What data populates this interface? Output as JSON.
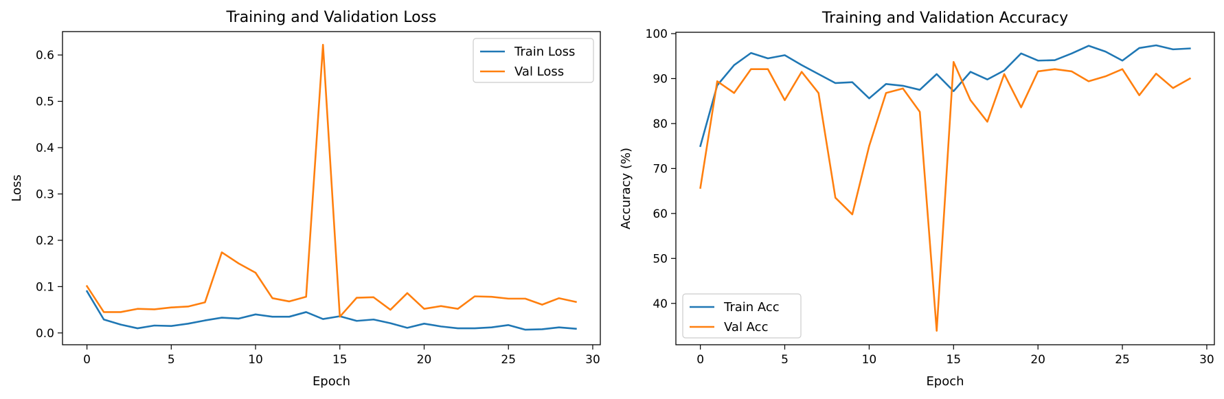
{
  "chart_data": [
    {
      "type": "line",
      "title": "Training and Validation Loss",
      "xlabel": "Epoch",
      "ylabel": "Loss",
      "xlim": [
        -1.45,
        30.45
      ],
      "ylim": [
        -0.0255,
        0.6505
      ],
      "xticks": [
        0,
        5,
        10,
        15,
        20,
        25,
        30
      ],
      "yticks": [
        0.0,
        0.1,
        0.2,
        0.3,
        0.4,
        0.5,
        0.6
      ],
      "ytick_labels": [
        "0.0",
        "0.1",
        "0.2",
        "0.3",
        "0.4",
        "0.5",
        "0.6"
      ],
      "grid": false,
      "legend_position": "upper right",
      "x": [
        0,
        1,
        2,
        3,
        4,
        5,
        6,
        7,
        8,
        9,
        10,
        11,
        12,
        13,
        14,
        15,
        16,
        17,
        18,
        19,
        20,
        21,
        22,
        23,
        24,
        25,
        26,
        27,
        28,
        29
      ],
      "series": [
        {
          "name": "Train Loss",
          "color": "#1f77b4",
          "values": [
            0.09,
            0.029,
            0.018,
            0.01,
            0.016,
            0.015,
            0.02,
            0.027,
            0.033,
            0.031,
            0.04,
            0.035,
            0.035,
            0.045,
            0.03,
            0.036,
            0.026,
            0.029,
            0.021,
            0.011,
            0.02,
            0.014,
            0.01,
            0.01,
            0.012,
            0.017,
            0.007,
            0.008,
            0.012,
            0.009
          ]
        },
        {
          "name": "Val Loss",
          "color": "#ff7f0e",
          "values": [
            0.101,
            0.045,
            0.045,
            0.052,
            0.051,
            0.055,
            0.057,
            0.066,
            0.174,
            0.15,
            0.13,
            0.075,
            0.068,
            0.078,
            0.622,
            0.035,
            0.076,
            0.077,
            0.05,
            0.086,
            0.052,
            0.058,
            0.052,
            0.079,
            0.078,
            0.074,
            0.074,
            0.061,
            0.075,
            0.067
          ]
        }
      ]
    },
    {
      "type": "line",
      "title": "Training and Validation Accuracy",
      "xlabel": "Epoch",
      "ylabel": "Accuracy (%)",
      "xlim": [
        -1.45,
        30.45
      ],
      "ylim": [
        30.8,
        100.3
      ],
      "xticks": [
        0,
        5,
        10,
        15,
        20,
        25,
        30
      ],
      "yticks": [
        40,
        50,
        60,
        70,
        80,
        90,
        100
      ],
      "ytick_labels": [
        "40",
        "50",
        "60",
        "70",
        "80",
        "90",
        "100"
      ],
      "grid": false,
      "legend_position": "lower left",
      "x": [
        0,
        1,
        2,
        3,
        4,
        5,
        6,
        7,
        8,
        9,
        10,
        11,
        12,
        13,
        14,
        15,
        16,
        17,
        18,
        19,
        20,
        21,
        22,
        23,
        24,
        25,
        26,
        27,
        28,
        29
      ],
      "series": [
        {
          "name": "Train Acc",
          "color": "#1f77b4",
          "values": [
            75.0,
            88.5,
            93.0,
            95.7,
            94.5,
            95.2,
            93.0,
            91.0,
            89.0,
            89.2,
            85.6,
            88.8,
            88.4,
            87.5,
            91.0,
            87.2,
            91.5,
            89.8,
            91.8,
            95.6,
            94.0,
            94.1,
            95.6,
            97.3,
            96.0,
            94.0,
            96.8,
            97.4,
            96.5,
            96.7
          ]
        },
        {
          "name": "Val Acc",
          "color": "#ff7f0e",
          "values": [
            65.7,
            89.4,
            86.8,
            92.1,
            92.1,
            85.2,
            91.5,
            86.8,
            63.5,
            59.8,
            75.0,
            86.8,
            87.8,
            82.6,
            33.9,
            93.7,
            85.2,
            80.4,
            91.0,
            83.6,
            91.6,
            92.1,
            91.6,
            89.4,
            90.5,
            92.1,
            86.3,
            91.1,
            87.9,
            90.0
          ]
        }
      ]
    }
  ]
}
